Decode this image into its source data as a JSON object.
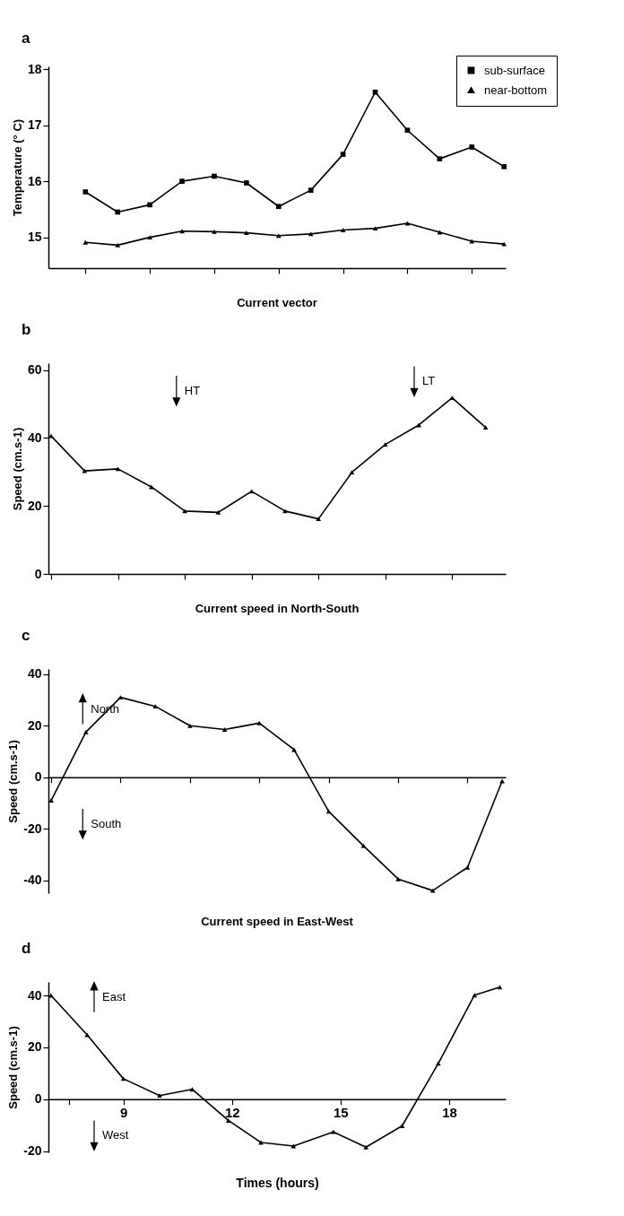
{
  "chart_data": [
    {
      "type": "line",
      "annotations": [
        "a"
      ],
      "ylabel": "Temperature (° C)",
      "categories": [
        null,
        null,
        null,
        null,
        null,
        null,
        null,
        null,
        null,
        null,
        null,
        null,
        null,
        null
      ],
      "ylim": [
        14.45,
        18.05
      ],
      "yticks": [
        15,
        16,
        17,
        18
      ],
      "tick_labels": "y",
      "legend": "top right",
      "series": [
        {
          "name": "sub-surface",
          "color": "#000000",
          "marker": "square",
          "values": [
            15.81,
            15.45,
            15.58,
            16.0,
            16.09,
            15.97,
            15.55,
            15.84,
            16.48,
            17.59,
            16.91,
            16.4,
            16.61,
            16.26
          ]
        },
        {
          "name": "near-bottom",
          "color": "#000000",
          "marker": "triangle",
          "values": [
            14.91,
            14.86,
            15.0,
            15.11,
            15.1,
            15.08,
            15.03,
            15.06,
            15.13,
            15.16,
            15.25,
            15.09,
            14.93,
            14.88
          ]
        }
      ]
    },
    {
      "type": "line",
      "title": "Current vector",
      "annotations": [
        "b",
        "HT",
        "LT"
      ],
      "ylabel": "Speed (cm.s-1)",
      "categories": [
        null,
        null,
        null,
        null,
        null,
        null,
        null,
        null,
        null,
        null,
        null,
        null,
        null,
        null
      ],
      "ylim": [
        0,
        62
      ],
      "yticks": [
        0,
        20,
        40,
        60
      ],
      "tick_labels": "y",
      "marker": "triangle",
      "series": [
        {
          "color": "#000000",
          "values": [
            40.6,
            30.3,
            30.9,
            25.6,
            18.5,
            18.1,
            24.3,
            18.5,
            16.2,
            29.9,
            38.1,
            43.8,
            51.8,
            43.1
          ]
        }
      ]
    },
    {
      "type": "line",
      "title": "Current speed in North-South",
      "annotations": [
        "c",
        "North",
        "South"
      ],
      "ylabel": "Speed (cm.s-1)",
      "categories": [
        null,
        null,
        null,
        null,
        null,
        null,
        null,
        null,
        null,
        null,
        null,
        null,
        null,
        null
      ],
      "ylim": [
        -45,
        42
      ],
      "yticks": [
        -40,
        -20,
        0,
        20,
        40
      ],
      "tick_labels": "y",
      "marker": "triangle",
      "series": [
        {
          "color": "#000000",
          "values": [
            -9,
            17.5,
            31,
            27.5,
            20,
            18.5,
            21,
            10.7,
            -13.3,
            -26.6,
            -39.5,
            -44,
            -35,
            -1.5
          ]
        }
      ]
    },
    {
      "type": "line",
      "title": "Current speed in East-West",
      "annotations": [
        "d",
        "East",
        "West"
      ],
      "ylabel": "Speed (cm.s-1)",
      "xlabel": "Times (hours)",
      "x": [
        7,
        8,
        9,
        10,
        10.9,
        11.9,
        12.8,
        13.7,
        14.8,
        15.7,
        16.7,
        17.7,
        18.7,
        19.4
      ],
      "xlim": [
        6.93,
        19.56
      ],
      "xticks": [
        {
          "value": 7.5,
          "label": null
        },
        9,
        12,
        15,
        18
      ],
      "ylim": [
        -20.5,
        45.2
      ],
      "yticks": [
        -20,
        0,
        20,
        40
      ],
      "marker": "triangle",
      "series": [
        {
          "color": "#000000",
          "values": [
            40,
            24.8,
            7.9,
            1.4,
            3.8,
            -8.2,
            -16.7,
            -18.1,
            -12.6,
            -18.5,
            -10.3,
            13.8,
            40.1,
            43.2
          ]
        }
      ]
    }
  ]
}
